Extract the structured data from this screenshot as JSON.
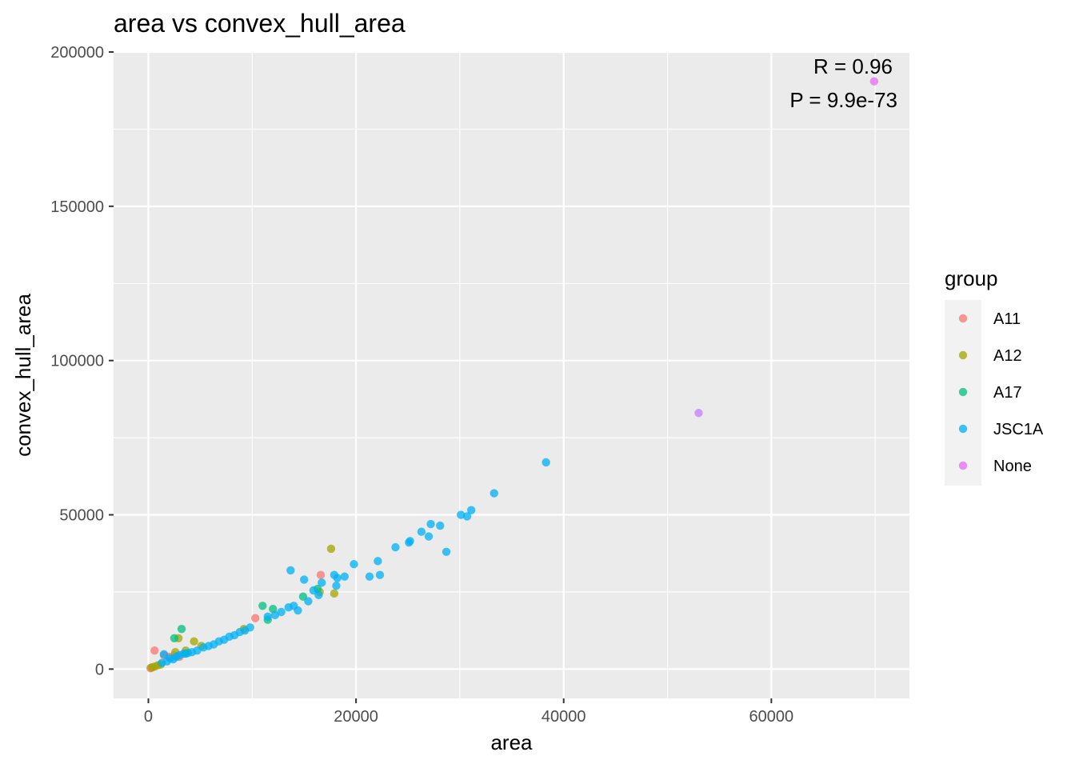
{
  "chart_data": {
    "type": "scatter",
    "title": "area vs convex_hull_area",
    "xlabel": "area",
    "ylabel": "convex_hull_area",
    "xlim": [
      -3350,
      73300
    ],
    "ylim": [
      -9500,
      200000
    ],
    "x_ticks": [
      0,
      20000,
      40000,
      60000
    ],
    "x_tick_labels": [
      "0",
      "20000",
      "40000",
      "60000"
    ],
    "y_ticks": [
      0,
      50000,
      100000,
      150000,
      200000
    ],
    "y_tick_labels": [
      "0",
      "50000",
      "100000",
      "150000",
      "200000"
    ],
    "grid": true,
    "panel_background": "#ebebeb",
    "legend": {
      "title": "group",
      "position": "right",
      "entries": [
        {
          "label": "A11",
          "color": "#F8766D"
        },
        {
          "label": "A12",
          "color": "#A3A500"
        },
        {
          "label": "A17",
          "color": "#00BF7D"
        },
        {
          "label": "JSC1A",
          "color": "#00B0F6"
        },
        {
          "label": "None",
          "color": "#E76BF3"
        }
      ]
    },
    "annotations": [
      "R = 0.96",
      "P = 9.9e-73"
    ],
    "series": [
      {
        "name": "A11",
        "color": "#F8766D",
        "points": [
          [
            200,
            300
          ],
          [
            400,
            600
          ],
          [
            600,
            6000
          ],
          [
            1500,
            4500
          ],
          [
            2000,
            4000
          ],
          [
            2500,
            4500
          ],
          [
            3000,
            4000
          ],
          [
            10300,
            16500
          ],
          [
            16600,
            30500
          ]
        ]
      },
      {
        "name": "A12",
        "color": "#A3A500",
        "points": [
          [
            300,
            500
          ],
          [
            600,
            800
          ],
          [
            900,
            1200
          ],
          [
            1200,
            1500
          ],
          [
            2600,
            5500
          ],
          [
            2900,
            10000
          ],
          [
            3600,
            6000
          ],
          [
            4400,
            9000
          ],
          [
            5100,
            7500
          ],
          [
            9200,
            13000
          ],
          [
            17600,
            39000
          ],
          [
            17900,
            24500
          ],
          [
            16500,
            25000
          ]
        ]
      },
      {
        "name": "A17",
        "color": "#00BF7D",
        "points": [
          [
            2500,
            10000
          ],
          [
            3200,
            13000
          ],
          [
            3600,
            5000
          ],
          [
            11000,
            20500
          ],
          [
            11500,
            16000
          ],
          [
            12000,
            19500
          ],
          [
            14900,
            23500
          ],
          [
            16300,
            26000
          ]
        ]
      },
      {
        "name": "JSC1A",
        "color": "#00B0F6",
        "points": [
          [
            1300,
            2000
          ],
          [
            1500,
            4800
          ],
          [
            1800,
            2500
          ],
          [
            2100,
            3500
          ],
          [
            2400,
            3200
          ],
          [
            2700,
            4000
          ],
          [
            3000,
            4500
          ],
          [
            3400,
            5000
          ],
          [
            3800,
            5200
          ],
          [
            4200,
            5500
          ],
          [
            4700,
            6000
          ],
          [
            5300,
            7000
          ],
          [
            5800,
            7500
          ],
          [
            6300,
            8000
          ],
          [
            6800,
            9000
          ],
          [
            7300,
            9500
          ],
          [
            7800,
            10500
          ],
          [
            8300,
            11000
          ],
          [
            8800,
            12000
          ],
          [
            9300,
            12500
          ],
          [
            9800,
            13500
          ],
          [
            11500,
            17000
          ],
          [
            12200,
            17500
          ],
          [
            12800,
            18500
          ],
          [
            13500,
            20000
          ],
          [
            13700,
            32000
          ],
          [
            14000,
            20500
          ],
          [
            14400,
            19000
          ],
          [
            15000,
            29000
          ],
          [
            15400,
            22000
          ],
          [
            15900,
            25500
          ],
          [
            16400,
            24000
          ],
          [
            16700,
            28000
          ],
          [
            17900,
            30500
          ],
          [
            18100,
            27000
          ],
          [
            18200,
            29500
          ],
          [
            18900,
            30000
          ],
          [
            19800,
            34000
          ],
          [
            21300,
            30000
          ],
          [
            22100,
            35000
          ],
          [
            22300,
            30500
          ],
          [
            23800,
            39500
          ],
          [
            25100,
            41000
          ],
          [
            25200,
            41500
          ],
          [
            26300,
            44500
          ],
          [
            27000,
            43000
          ],
          [
            27200,
            47000
          ],
          [
            28100,
            46500
          ],
          [
            28700,
            38000
          ],
          [
            30100,
            50000
          ],
          [
            30700,
            49500
          ],
          [
            31100,
            51500
          ],
          [
            33300,
            57000
          ],
          [
            38300,
            67000
          ]
        ]
      },
      {
        "name": "None",
        "color": "#E76BF3",
        "points": [
          [
            69900,
            190500
          ]
        ]
      },
      {
        "name": "",
        "color": "#C77CFF",
        "points": [
          [
            53000,
            83000
          ]
        ]
      }
    ]
  }
}
